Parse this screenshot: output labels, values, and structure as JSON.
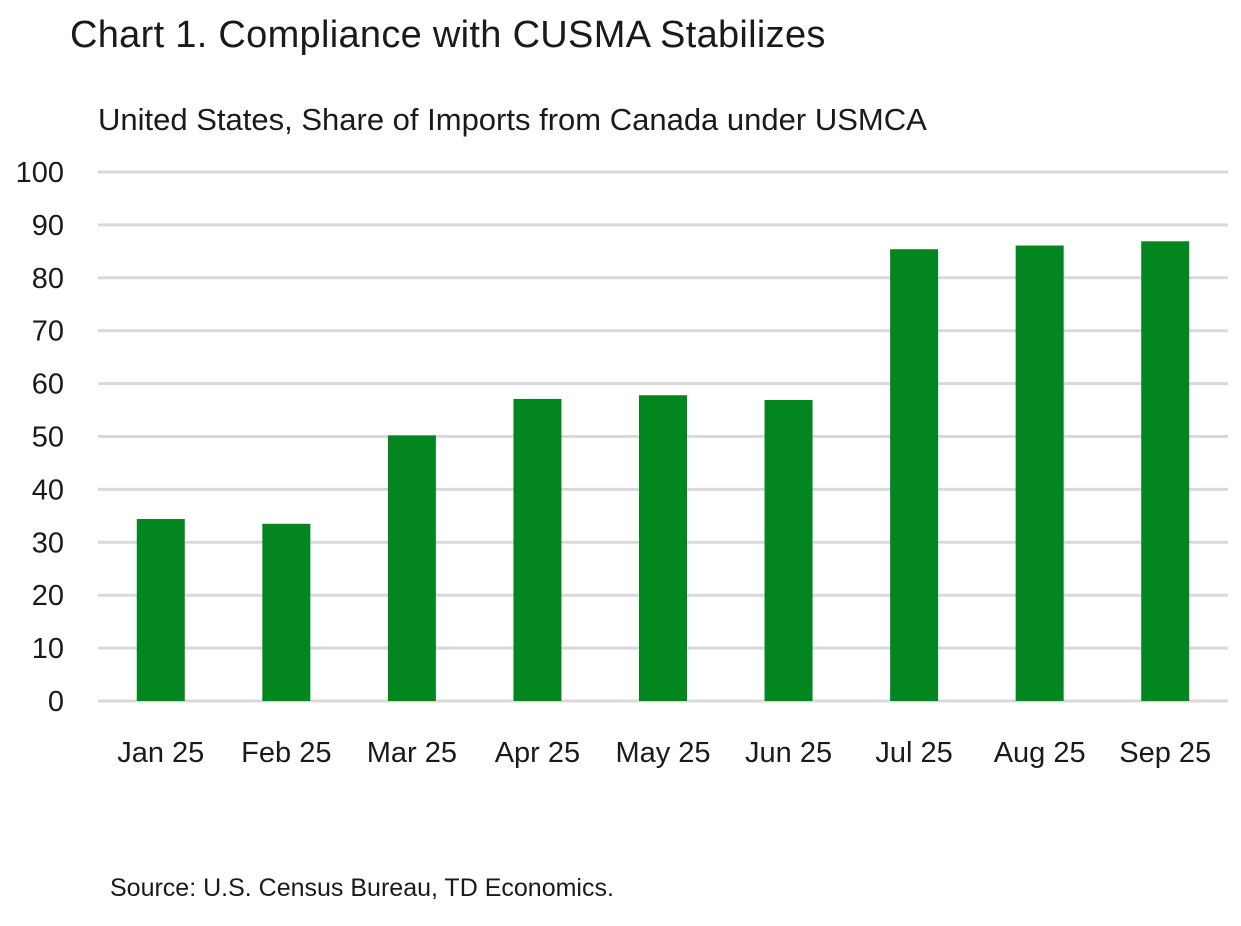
{
  "title": "Chart 1. Compliance with CUSMA Stabilizes",
  "subtitle": "United States, Share of Imports from Canada under USMCA",
  "source": "Source: U.S. Census Bureau, TD Economics.",
  "colors": {
    "bar": "#03861f",
    "grid": "#d9d9d9",
    "text": "#1a1a1a"
  },
  "chart_data": {
    "type": "bar",
    "title": "Chart 1. Compliance with CUSMA Stabilizes",
    "subtitle": "United States, Share of Imports from Canada under USMCA",
    "categories": [
      "Jan 25",
      "Feb 25",
      "Mar 25",
      "Apr 25",
      "May 25",
      "Jun 25",
      "Jul 25",
      "Aug 25",
      "Sep 25"
    ],
    "values": [
      34.4,
      33.5,
      50.2,
      57.1,
      57.8,
      56.9,
      85.4,
      86.1,
      86.9
    ],
    "yticks": [
      "0",
      "10",
      "20",
      "30",
      "40",
      "50",
      "60",
      "70",
      "80",
      "90",
      "100"
    ],
    "ylim": [
      0,
      100
    ],
    "xlabel": "",
    "ylabel": "",
    "grid": true,
    "legend": "none"
  }
}
